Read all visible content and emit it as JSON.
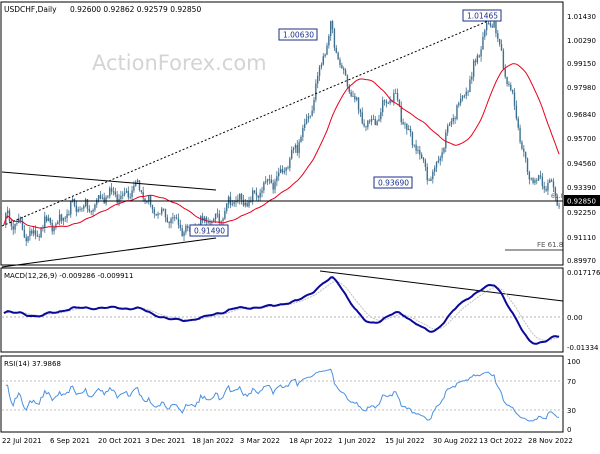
{
  "main_panel": {
    "header_label": "USDCHF,Daily",
    "header_values": "0.92600 0.92862 0.92579 0.92850",
    "watermark": "ActionForex.com",
    "yaxis": [
      "1.01430",
      "1.00290",
      "0.99150",
      "0.97980",
      "0.96840",
      "0.95700",
      "0.94560",
      "0.93390",
      "0.92250",
      "0.91110",
      "0.89970"
    ],
    "current_price": "0.92850",
    "annotations": [
      "1.00630",
      "1.01465",
      "0.93690",
      "0.91490"
    ],
    "fe_label": "FE 61.8",
    "level_label": "61.8"
  },
  "macd_panel": {
    "label": "MACD(12,26,9) -0.009286 -0.009911",
    "yaxis": [
      "0.017176",
      "0.00",
      "-0.01334"
    ]
  },
  "rsi_panel": {
    "label": "RSI(14) 37.9868",
    "yaxis": [
      "100",
      "70",
      "30",
      "0"
    ]
  },
  "xaxis": [
    "22 Jul 2021",
    "6 Sep 2021",
    "20 Oct 2021",
    "3 Dec 2021",
    "18 Jan 2022",
    "3 Mar 2022",
    "18 Apr 2022",
    "1 Jun 2022",
    "15 Jul 2022",
    "30 Aug 2022",
    "13 Oct 2022",
    "28 Nov 2022"
  ],
  "colors": {
    "candle": "#3f6f8f",
    "ma": "#e8001c",
    "macd_line": "#0a0a9a",
    "macd_signal": "#c0c0c0",
    "rsi_line": "#4a90e2",
    "trendline": "#000000",
    "label_box_border": "#1d2f8a"
  },
  "chart_data": {
    "type": "line",
    "title": "USDCHF,Daily",
    "x_ticks": [
      "22 Jul 2021",
      "6 Sep 2021",
      "20 Oct 2021",
      "3 Dec 2021",
      "18 Jan 2022",
      "3 Mar 2022",
      "18 Apr 2022",
      "1 Jun 2022",
      "15 Jul 2022",
      "30 Aug 2022",
      "13 Oct 2022",
      "28 Nov 2022"
    ],
    "ylim": [
      0.8997,
      1.0143
    ],
    "key_points": [
      {
        "x": "Jul 2021",
        "y": 0.918
      },
      {
        "x": "Aug 2021",
        "y": 0.912
      },
      {
        "x": "Sep 2021",
        "y": 0.922
      },
      {
        "x": "Oct 2021",
        "y": 0.928
      },
      {
        "x": "Nov 2021",
        "y": 0.934
      },
      {
        "x": "Dec 2021",
        "y": 0.918
      },
      {
        "x": "Jan 2022",
        "y": 0.9149
      },
      {
        "x": "Feb 2022",
        "y": 0.926
      },
      {
        "x": "Mar 2022",
        "y": 0.932
      },
      {
        "x": "Apr 2022",
        "y": 0.952
      },
      {
        "x": "May 2022",
        "y": 1.0063
      },
      {
        "x": "Jun 2022",
        "y": 0.962
      },
      {
        "x": "Jul 2022",
        "y": 0.976
      },
      {
        "x": "Aug 2022",
        "y": 0.9369
      },
      {
        "x": "Sep 2022",
        "y": 0.975
      },
      {
        "x": "Oct 2022",
        "y": 1.0146
      },
      {
        "x": "Nov 2022",
        "y": 0.943
      },
      {
        "x": "Dec 2022",
        "y": 0.9285
      }
    ],
    "macd_ylim": [
      -0.01334,
      0.017176
    ],
    "rsi_ylim": [
      0,
      100
    ],
    "grid": false
  }
}
